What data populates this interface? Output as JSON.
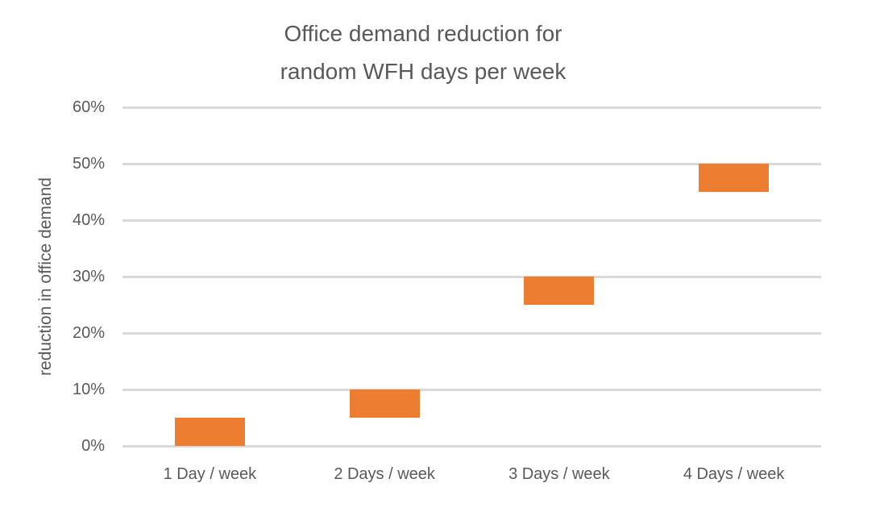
{
  "chart_data": {
    "type": "bar",
    "subtype": "floating-range-columns",
    "title": "Office demand reduction for random WFH days per week",
    "title_lines": [
      "Office demand reduction for",
      "random WFH days per week"
    ],
    "xlabel": "",
    "ylabel": "reduction in office demand",
    "categories": [
      "1 Day / week",
      "2 Days / week",
      "3 Days / week",
      "4 Days / week"
    ],
    "series": [
      {
        "name": "reduction in office demand",
        "ranges_pct": [
          {
            "category": "1 Day / week",
            "low": 0,
            "high": 5
          },
          {
            "category": "2 Days / week",
            "low": 5,
            "high": 10
          },
          {
            "category": "3 Days / week",
            "low": 25,
            "high": 30
          },
          {
            "category": "4 Days / week",
            "low": 45,
            "high": 50
          }
        ]
      }
    ],
    "ylim": [
      0,
      60
    ],
    "yticks": [
      0,
      10,
      20,
      30,
      40,
      50,
      60
    ],
    "ytick_labels": [
      "0%",
      "10%",
      "20%",
      "30%",
      "40%",
      "50%",
      "60%"
    ],
    "grid": true,
    "legend": false,
    "colors": {
      "bar": "#ED7D31",
      "gridline": "#D9D9D9",
      "text": "#595959",
      "background": "#FFFFFF"
    }
  }
}
